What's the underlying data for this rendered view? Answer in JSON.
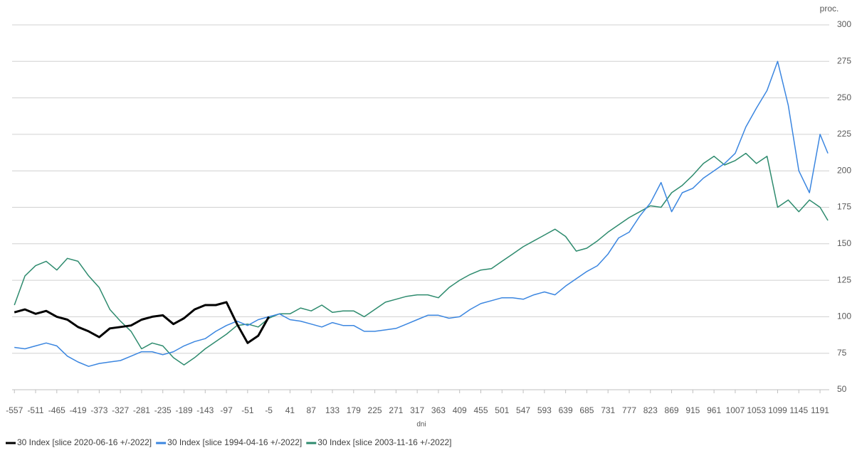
{
  "chart_data": {
    "type": "line",
    "x_label": "dni",
    "y_label": "proc.",
    "x": [
      -557,
      -534,
      -511,
      -488,
      -465,
      -442,
      -419,
      -396,
      -373,
      -350,
      -327,
      -304,
      -281,
      -258,
      -235,
      -212,
      -189,
      -166,
      -143,
      -120,
      -97,
      -74,
      -51,
      -28,
      -5,
      18,
      41,
      64,
      87,
      110,
      133,
      156,
      179,
      202,
      225,
      248,
      271,
      294,
      317,
      340,
      363,
      386,
      409,
      432,
      455,
      478,
      501,
      524,
      547,
      570,
      593,
      616,
      639,
      662,
      685,
      708,
      731,
      754,
      777,
      800,
      823,
      846,
      869,
      892,
      915,
      938,
      961,
      984,
      1007,
      1030,
      1053,
      1076,
      1099,
      1122,
      1145,
      1168,
      1191,
      1208
    ],
    "xlim": [
      -562,
      1211
    ],
    "xticks": [
      -557,
      -511,
      -465,
      -419,
      -373,
      -327,
      -281,
      -235,
      -189,
      -143,
      -97,
      -51,
      -5,
      41,
      87,
      133,
      179,
      225,
      271,
      317,
      363,
      409,
      455,
      501,
      547,
      593,
      639,
      685,
      731,
      777,
      823,
      869,
      915,
      961,
      1007,
      1053,
      1099,
      1145,
      1191
    ],
    "ylim": [
      50,
      300
    ],
    "yticks": [
      50,
      75,
      100,
      125,
      150,
      175,
      200,
      225,
      250,
      275,
      300
    ],
    "grid": true,
    "legend": "bottom",
    "series": [
      {
        "name": "30 Index [slice 2020-06-16 +/-2022]",
        "color": "#000000",
        "values": [
          103,
          105,
          102,
          104,
          100,
          98,
          93,
          90,
          86,
          92,
          93,
          94,
          98,
          100,
          101,
          95,
          99,
          105,
          108,
          108,
          110,
          95,
          82,
          87,
          100,
          null,
          null,
          null,
          null,
          null,
          null,
          null,
          null,
          null,
          null,
          null,
          null,
          null,
          null,
          null,
          null,
          null,
          null,
          null,
          null,
          null,
          null,
          null,
          null,
          null,
          null,
          null,
          null,
          null,
          null,
          null,
          null,
          null,
          null,
          null,
          null,
          null,
          null,
          null,
          null,
          null,
          null,
          null,
          null,
          null,
          null,
          null,
          null,
          null,
          null,
          null,
          null,
          null
        ]
      },
      {
        "name": "30 Index [slice 1994-04-16 +/-2022]",
        "color": "#3b86e0",
        "values": [
          79,
          78,
          80,
          82,
          80,
          73,
          69,
          66,
          68,
          69,
          70,
          73,
          76,
          76,
          74,
          76,
          80,
          83,
          85,
          90,
          94,
          97,
          94,
          98,
          100,
          102,
          98,
          97,
          95,
          93,
          96,
          94,
          94,
          90,
          90,
          91,
          92,
          95,
          98,
          101,
          101,
          99,
          100,
          105,
          109,
          111,
          113,
          113,
          112,
          115,
          117,
          115,
          121,
          126,
          131,
          135,
          143,
          154,
          158,
          169,
          178,
          192,
          172,
          185,
          188,
          195,
          200,
          205,
          212,
          230,
          243,
          255,
          275,
          245,
          200,
          185,
          225,
          212
        ]
      },
      {
        "name": "30 Index [slice 2003-11-16 +/-2022]",
        "color": "#2e8b6e",
        "values": [
          108,
          128,
          135,
          138,
          132,
          140,
          138,
          128,
          120,
          105,
          97,
          90,
          78,
          82,
          80,
          72,
          67,
          72,
          78,
          83,
          88,
          94,
          95,
          93,
          99,
          102,
          102,
          106,
          104,
          108,
          103,
          104,
          104,
          100,
          105,
          110,
          112,
          114,
          115,
          115,
          113,
          120,
          125,
          129,
          132,
          133,
          138,
          143,
          148,
          152,
          156,
          160,
          155,
          145,
          147,
          152,
          158,
          163,
          168,
          172,
          176,
          175,
          185,
          190,
          197,
          205,
          210,
          204,
          207,
          212,
          205,
          210,
          175,
          180,
          172,
          180,
          175,
          166
        ]
      }
    ]
  }
}
